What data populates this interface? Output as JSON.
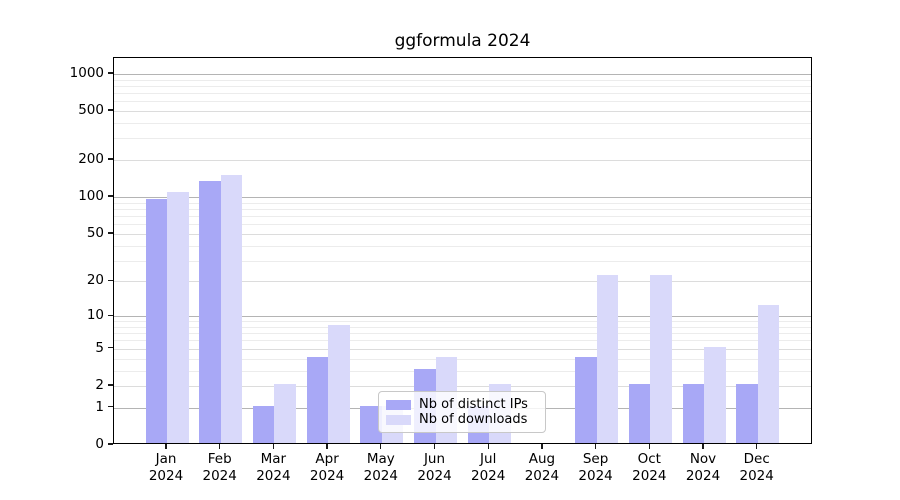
{
  "chart_data": {
    "type": "bar",
    "title": "ggformula 2024",
    "categories": [
      "Jan",
      "Feb",
      "Mar",
      "Apr",
      "May",
      "Jun",
      "Jul",
      "Aug",
      "Sep",
      "Oct",
      "Nov",
      "Dec"
    ],
    "x_tick_year": "2024",
    "series": [
      {
        "name": "Nb of distinct IPs",
        "color": "#a8a8f6",
        "values": [
          93,
          130,
          1,
          4,
          1,
          3,
          1,
          0,
          4,
          2,
          2,
          2
        ]
      },
      {
        "name": "Nb of downloads",
        "color": "#d9d9fa",
        "values": [
          107,
          145,
          2,
          8,
          1,
          4,
          2,
          0,
          22,
          22,
          5,
          12
        ]
      }
    ],
    "ylabel": "",
    "xlabel": "",
    "y_scale": "log1p",
    "y_ticks": [
      0,
      1,
      2,
      5,
      10,
      20,
      50,
      100,
      200,
      500,
      1000
    ],
    "y_minor_ticks": [
      3,
      4,
      6,
      7,
      8,
      9,
      30,
      40,
      60,
      70,
      80,
      90,
      300,
      400,
      600,
      700,
      800,
      900
    ],
    "y_max": 1346,
    "grid": true,
    "legend_position": "inside-bottom-center"
  },
  "colors": {
    "grid_power10": "#b4b4b4",
    "grid_labeled": "#dcdcdc",
    "grid_minor": "#ececec",
    "axis": "#000000",
    "text": "#000000",
    "background": "#ffffff"
  }
}
